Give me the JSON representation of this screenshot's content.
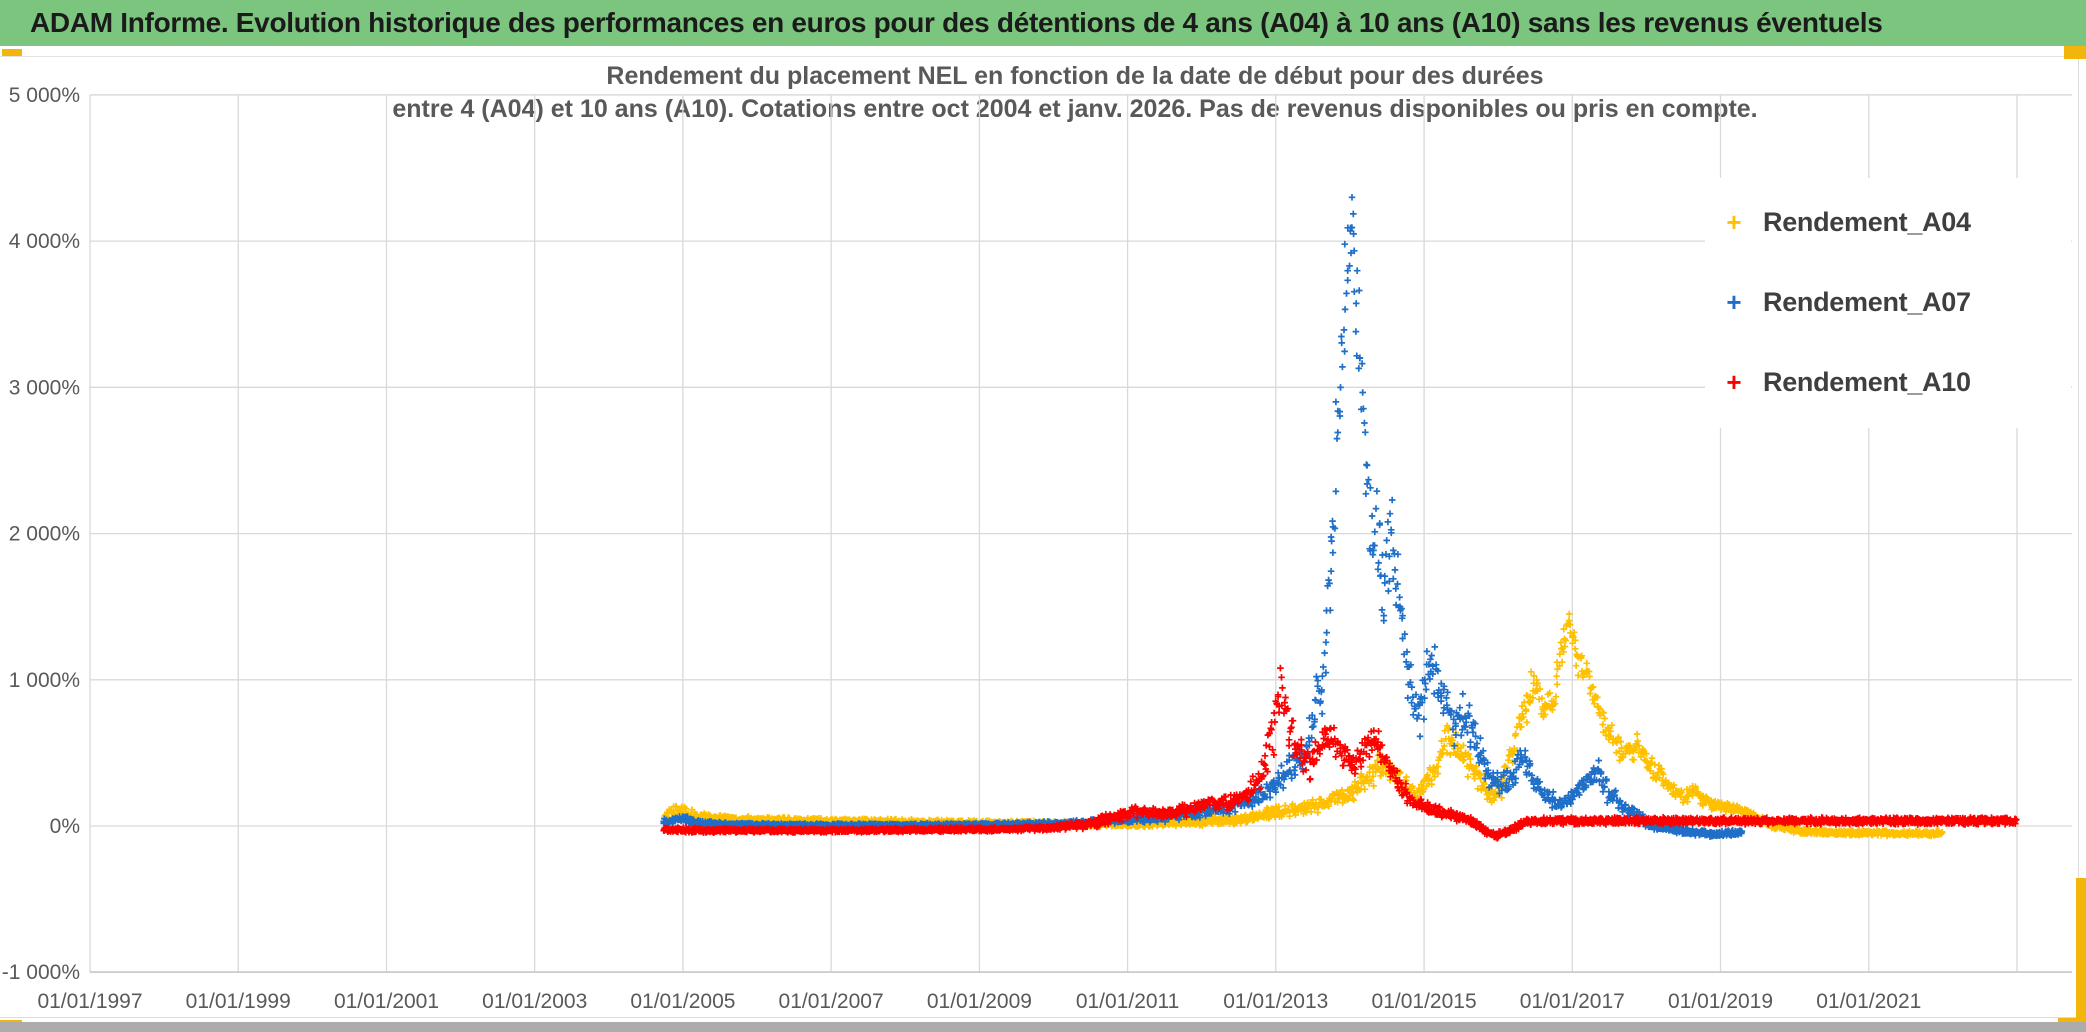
{
  "banner": {
    "title": "ADAM Informe. Evolution historique des performances en euros pour des détentions de 4 ans (A04) à 10 ans (A10) sans les revenus éventuels",
    "bg_color": "#7cc57e",
    "accent_color": "#f2b50b"
  },
  "chart": {
    "title_line1": "Rendement du placement NEL en fonction de la date de début pour des durées",
    "title_line2": "entre 4 (A04) et 10 ans (A10). Cotations entre oct 2004 et janv. 2026. Pas de revenus disponibles ou pris en compte.",
    "title_color": "#595959",
    "gridline_color": "#d9d9d9",
    "axis_label_color": "#595959",
    "legend_text_color": "#3f3f3f"
  },
  "chart_data": {
    "type": "scatter",
    "title": "Rendement du placement NEL en fonction de la date de début pour des durées entre 4 (A04) et 10 ans (A10). Cotations entre oct 2004 et janv. 2026. Pas de revenus disponibles ou pris en compte.",
    "marker": "+",
    "grid": true,
    "legend_position": "right",
    "x_axis": {
      "label": "",
      "ticks": [
        "01/01/1997",
        "01/01/1999",
        "01/01/2001",
        "01/01/2003",
        "01/01/2005",
        "01/01/2007",
        "01/01/2009",
        "01/01/2011",
        "01/01/2013",
        "01/01/2015",
        "01/01/2017",
        "01/01/2019",
        "01/01/2021"
      ],
      "tick_years": [
        1997,
        1999,
        2001,
        2003,
        2005,
        2007,
        2009,
        2011,
        2013,
        2015,
        2017,
        2019,
        2021
      ],
      "grid_years": [
        1997,
        1999,
        2001,
        2003,
        2005,
        2007,
        2009,
        2011,
        2013,
        2015,
        2017,
        2019,
        2021,
        2023
      ],
      "range_years": [
        1997,
        2023
      ],
      "data_start": "oct 2004"
    },
    "y_axis": {
      "label": "",
      "unit": "%",
      "min": -1000,
      "max": 5000,
      "ticks": [
        {
          "value": 5000,
          "label": "5 000%"
        },
        {
          "value": 4000,
          "label": "4 000%"
        },
        {
          "value": 3000,
          "label": "3 000%"
        },
        {
          "value": 2000,
          "label": "2 000%"
        },
        {
          "value": 1000,
          "label": "1 000%"
        },
        {
          "value": 0,
          "label": "0%"
        },
        {
          "value": -1000,
          "label": "-1 000%"
        }
      ]
    },
    "seed": 42,
    "series": [
      {
        "name": "Rendement_A04",
        "color": "#ffc000",
        "cap": 1450,
        "floor": -120,
        "peak": {
          "approx_date": "late 2016",
          "value_pct": 1400
        },
        "envelope": [
          [
            2004.75,
            70,
            70
          ],
          [
            2004.9,
            110,
            75
          ],
          [
            2005.05,
            80,
            55
          ],
          [
            2005.3,
            55,
            38
          ],
          [
            2005.7,
            42,
            28
          ],
          [
            2006.5,
            35,
            24
          ],
          [
            2007.5,
            30,
            22
          ],
          [
            2008.5,
            24,
            20
          ],
          [
            2009.5,
            18,
            20
          ],
          [
            2010.3,
            12,
            20
          ],
          [
            2011.0,
            12,
            24
          ],
          [
            2011.6,
            22,
            26
          ],
          [
            2012.1,
            32,
            30
          ],
          [
            2012.6,
            55,
            40
          ],
          [
            2013.0,
            90,
            48
          ],
          [
            2013.35,
            120,
            55
          ],
          [
            2013.7,
            160,
            62
          ],
          [
            2014.0,
            220,
            80
          ],
          [
            2014.2,
            300,
            95
          ],
          [
            2014.4,
            420,
            110
          ],
          [
            2014.55,
            400,
            105
          ],
          [
            2014.7,
            280,
            95
          ],
          [
            2014.9,
            190,
            80
          ],
          [
            2015.05,
            290,
            100
          ],
          [
            2015.2,
            450,
            120
          ],
          [
            2015.32,
            630,
            140
          ],
          [
            2015.45,
            520,
            130
          ],
          [
            2015.6,
            430,
            120
          ],
          [
            2015.78,
            290,
            100
          ],
          [
            2015.92,
            200,
            85
          ],
          [
            2016.05,
            280,
            95
          ],
          [
            2016.2,
            520,
            130
          ],
          [
            2016.35,
            800,
            150
          ],
          [
            2016.5,
            980,
            160
          ],
          [
            2016.62,
            780,
            150
          ],
          [
            2016.75,
            880,
            150
          ],
          [
            2016.88,
            1250,
            130
          ],
          [
            2016.96,
            1400,
            60
          ],
          [
            2017.05,
            1180,
            130
          ],
          [
            2017.15,
            1080,
            120
          ],
          [
            2017.28,
            930,
            120
          ],
          [
            2017.4,
            750,
            110
          ],
          [
            2017.5,
            640,
            100
          ],
          [
            2017.62,
            540,
            95
          ],
          [
            2017.75,
            480,
            90
          ],
          [
            2017.88,
            540,
            90
          ],
          [
            2018.0,
            460,
            85
          ],
          [
            2018.12,
            360,
            80
          ],
          [
            2018.3,
            280,
            70
          ],
          [
            2018.5,
            200,
            60
          ],
          [
            2018.65,
            230,
            60
          ],
          [
            2018.85,
            160,
            50
          ],
          [
            2019.05,
            130,
            40
          ],
          [
            2019.3,
            110,
            35
          ],
          [
            2019.5,
            50,
            30
          ],
          [
            2019.75,
            0,
            26
          ],
          [
            2020.1,
            -35,
            22
          ],
          [
            2020.6,
            -45,
            20
          ],
          [
            2021.3,
            -50,
            20
          ],
          [
            2022.0,
            -50,
            20
          ]
        ]
      },
      {
        "name": "Rendement_A07",
        "color": "#1f6fc8",
        "cap": 4420,
        "floor": -120,
        "peak": {
          "approx_date": "early 2014",
          "value_pct": 4400
        },
        "envelope": [
          [
            2004.75,
            25,
            28
          ],
          [
            2004.95,
            55,
            35
          ],
          [
            2005.2,
            20,
            22
          ],
          [
            2005.6,
            8,
            16
          ],
          [
            2007.0,
            5,
            14
          ],
          [
            2008.5,
            5,
            14
          ],
          [
            2009.5,
            10,
            16
          ],
          [
            2010.3,
            20,
            22
          ],
          [
            2011.0,
            45,
            32
          ],
          [
            2011.5,
            65,
            38
          ],
          [
            2012.0,
            95,
            48
          ],
          [
            2012.4,
            130,
            55
          ],
          [
            2012.7,
            180,
            70
          ],
          [
            2012.95,
            260,
            90
          ],
          [
            2013.15,
            370,
            110
          ],
          [
            2013.35,
            480,
            130
          ],
          [
            2013.5,
            650,
            180
          ],
          [
            2013.65,
            1100,
            350
          ],
          [
            2013.78,
            2000,
            500
          ],
          [
            2013.88,
            3100,
            550
          ],
          [
            2013.96,
            3900,
            400
          ],
          [
            2014.03,
            4150,
            230
          ],
          [
            2014.1,
            3500,
            450
          ],
          [
            2014.2,
            2600,
            480
          ],
          [
            2014.32,
            2000,
            420
          ],
          [
            2014.45,
            1650,
            350
          ],
          [
            2014.55,
            2050,
            320
          ],
          [
            2014.68,
            1450,
            380
          ],
          [
            2014.82,
            950,
            300
          ],
          [
            2014.95,
            720,
            220
          ],
          [
            2015.08,
            1120,
            240
          ],
          [
            2015.22,
            950,
            240
          ],
          [
            2015.38,
            700,
            200
          ],
          [
            2015.55,
            780,
            160
          ],
          [
            2015.7,
            560,
            150
          ],
          [
            2015.85,
            380,
            120
          ],
          [
            2016.0,
            300,
            100
          ],
          [
            2016.15,
            280,
            95
          ],
          [
            2016.3,
            480,
            120
          ],
          [
            2016.45,
            330,
            100
          ],
          [
            2016.6,
            220,
            85
          ],
          [
            2016.8,
            160,
            75
          ],
          [
            2017.0,
            190,
            80
          ],
          [
            2017.2,
            300,
            95
          ],
          [
            2017.35,
            380,
            95
          ],
          [
            2017.5,
            220,
            80
          ],
          [
            2017.7,
            120,
            60
          ],
          [
            2017.9,
            60,
            45
          ],
          [
            2018.1,
            0,
            32
          ],
          [
            2018.5,
            -35,
            24
          ],
          [
            2018.9,
            -55,
            22
          ],
          [
            2019.3,
            -45,
            20
          ]
        ]
      },
      {
        "name": "Rendement_A10",
        "color": "#fe0000",
        "cap": 1230,
        "floor": -120,
        "peak": {
          "approx_date": "early 2013",
          "value_pct": 1200
        },
        "flat_tail": {
          "from_year": 2016.5,
          "to_year": 2023.0,
          "value_pct": 35
        },
        "envelope": [
          [
            2004.75,
            -25,
            22
          ],
          [
            2005.3,
            -30,
            18
          ],
          [
            2006.5,
            -30,
            16
          ],
          [
            2008.0,
            -28,
            16
          ],
          [
            2009.3,
            -22,
            16
          ],
          [
            2010.0,
            -12,
            20
          ],
          [
            2010.5,
            15,
            35
          ],
          [
            2010.9,
            70,
            45
          ],
          [
            2011.2,
            110,
            55
          ],
          [
            2011.5,
            85,
            45
          ],
          [
            2011.8,
            110,
            50
          ],
          [
            2012.1,
            170,
            65
          ],
          [
            2012.35,
            150,
            55
          ],
          [
            2012.6,
            200,
            75
          ],
          [
            2012.8,
            330,
            110
          ],
          [
            2012.95,
            600,
            220
          ],
          [
            2013.05,
            930,
            260
          ],
          [
            2013.15,
            720,
            220
          ],
          [
            2013.3,
            520,
            150
          ],
          [
            2013.45,
            420,
            120
          ],
          [
            2013.6,
            540,
            140
          ],
          [
            2013.75,
            600,
            130
          ],
          [
            2013.9,
            470,
            120
          ],
          [
            2014.05,
            390,
            110
          ],
          [
            2014.2,
            540,
            120
          ],
          [
            2014.35,
            580,
            110
          ],
          [
            2014.5,
            430,
            100
          ],
          [
            2014.65,
            300,
            85
          ],
          [
            2014.8,
            190,
            60
          ],
          [
            2015.0,
            130,
            45
          ],
          [
            2015.3,
            85,
            35
          ],
          [
            2015.6,
            40,
            28
          ],
          [
            2015.8,
            -20,
            30
          ],
          [
            2015.95,
            -65,
            28
          ],
          [
            2016.15,
            -40,
            26
          ],
          [
            2016.35,
            25,
            26
          ],
          [
            2016.6,
            35,
            26
          ],
          [
            2023.0,
            35,
            26
          ]
        ]
      }
    ]
  }
}
